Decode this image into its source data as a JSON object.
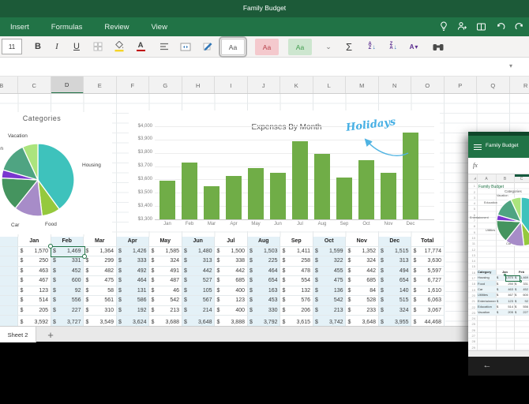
{
  "title_bar": {
    "title": "Family Budget"
  },
  "ribbon": {
    "tabs": [
      "Insert",
      "Formulas",
      "Review",
      "View"
    ],
    "undo_glyph": "↶",
    "redo_glyph": "↷"
  },
  "toolbar": {
    "font_size": "11",
    "bold": "B",
    "italic": "I",
    "underline": "U",
    "style_swatches": [
      {
        "label": "Aa",
        "bg": "#FFFFFF",
        "fg": "#555555",
        "selected": true
      },
      {
        "label": "Aa",
        "bg": "#F4C9CD",
        "fg": "#B8404A",
        "selected": false
      },
      {
        "label": "Aa",
        "bg": "#CDE6CF",
        "fg": "#3F9B4B",
        "selected": false
      }
    ],
    "more_styles_glyph": "⌄",
    "autosum": "Σ",
    "sort_asc": {
      "top": "A",
      "bottom": "Z"
    },
    "sort_desc": {
      "top": "Z",
      "bottom": "A"
    },
    "sort_filter": {
      "letter": "A"
    }
  },
  "collapse_ribbon_glyph": "▾",
  "sheet": {
    "columns": [
      "B",
      "C",
      "D",
      "E",
      "F",
      "G",
      "H",
      "I",
      "J",
      "K",
      "L",
      "M",
      "N",
      "O",
      "P",
      "Q",
      "R"
    ],
    "selected_column": "D",
    "active_tab": "Sheet 2",
    "add_sheet_glyph": "+"
  },
  "table": {
    "currency": "$",
    "month_headers": [
      "Jan",
      "Feb",
      "Mar",
      "Apr",
      "May",
      "Jun",
      "Jul",
      "Aug",
      "Sep",
      "Oct",
      "Nov",
      "Dec"
    ],
    "total_header": "Total",
    "rows": [
      {
        "category": "Housing",
        "values": [
          1570,
          1469,
          1364,
          1426,
          1585,
          1480,
          1500,
          1503,
          1411,
          1599,
          1352,
          1515
        ],
        "total": 17774
      },
      {
        "category": "Food",
        "values": [
          250,
          331,
          299,
          333,
          324,
          313,
          338,
          225,
          258,
          322,
          324,
          313
        ],
        "total": 3630
      },
      {
        "category": "Car",
        "values": [
          463,
          452,
          482,
          492,
          491,
          442,
          442,
          464,
          478,
          455,
          442,
          494
        ],
        "total": 5597
      },
      {
        "category": "Utilities",
        "values": [
          467,
          600,
          475,
          464,
          487,
          527,
          685,
          654,
          554,
          475,
          685,
          654
        ],
        "total": 6727
      },
      {
        "category": "Entertainment",
        "values": [
          123,
          92,
          58,
          131,
          46,
          105,
          400,
          163,
          132,
          136,
          84,
          140
        ],
        "total": 1610
      },
      {
        "category": "Education",
        "values": [
          514,
          556,
          561,
          586,
          542,
          567,
          123,
          453,
          576,
          542,
          528,
          515
        ],
        "total": 6063
      },
      {
        "category": "Vacation",
        "values": [
          205,
          227,
          310,
          192,
          213,
          214,
          400,
          330,
          206,
          213,
          233,
          324
        ],
        "total": 3067
      }
    ],
    "monthly_totals": [
      3592,
      3727,
      3549,
      3624,
      3688,
      3648,
      3888,
      3792,
      3615,
      3742,
      3648,
      3955
    ],
    "grand_total": 44468,
    "selected_cell": {
      "row": "Housing",
      "column": "Feb",
      "value": 1469
    }
  },
  "chart_data": [
    {
      "type": "pie",
      "title": "Categories",
      "labels": [
        "Housing",
        "Food",
        "Car",
        "Utilities",
        "Entertainment",
        "Education",
        "Vacation"
      ],
      "values": [
        17774,
        3630,
        5597,
        6727,
        1610,
        6063,
        3067
      ],
      "colors": [
        "#3EC2BC",
        "#95C93D",
        "#A78CC8",
        "#45945F",
        "#7A36CF",
        "#4FA482",
        "#ABE47D"
      ],
      "legend": "none",
      "label_style": "outside"
    },
    {
      "type": "bar",
      "title": "Expenses By Month",
      "categories": [
        "Jan",
        "Feb",
        "Mar",
        "Apr",
        "May",
        "Jun",
        "Jul",
        "Aug",
        "Sep",
        "Oct",
        "Nov",
        "Dec"
      ],
      "values": [
        3592,
        3727,
        3549,
        3624,
        3688,
        3648,
        3888,
        3792,
        3615,
        3742,
        3648,
        3955
      ],
      "ylim": [
        3300,
        4000
      ],
      "yticks": [
        3300,
        3400,
        3500,
        3600,
        3700,
        3800,
        3900,
        4000
      ],
      "bar_color": "#70AD47",
      "grid": true,
      "legend": "none",
      "annotation": {
        "text": "Holidays",
        "color": "#45AFE4"
      }
    }
  ],
  "phone": {
    "title": "Family Budget",
    "formula_bar_label": "fx",
    "columns": [
      "A",
      "B",
      "C"
    ],
    "visible_rows": 29,
    "a1_text": "Family Budget",
    "mini_chart_title": "Categories",
    "mini_table_headers": [
      "Category",
      "Jan",
      "Feb"
    ],
    "corner_glyph": "◢",
    "back_glyph": "←"
  }
}
